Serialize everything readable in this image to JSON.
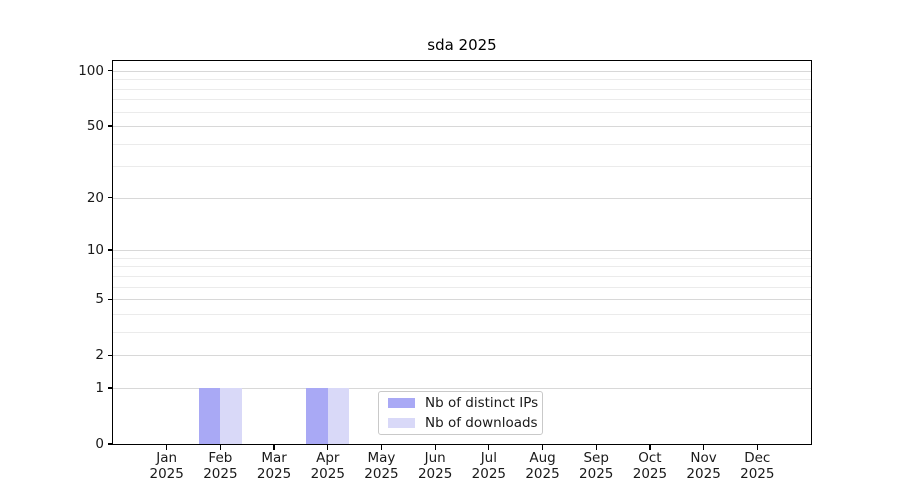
{
  "figure": {
    "background": "#ffffff"
  },
  "chart_data": {
    "type": "bar",
    "title": "sda 2025",
    "categories": [
      "Jan 2025",
      "Feb 2025",
      "Mar 2025",
      "Apr 2025",
      "May 2025",
      "Jun 2025",
      "Jul 2025",
      "Aug 2025",
      "Sep 2025",
      "Oct 2025",
      "Nov 2025",
      "Dec 2025"
    ],
    "series": [
      {
        "name": "Nb of distinct IPs",
        "color": "#a9a9f5",
        "values": [
          0,
          1,
          0,
          1,
          0,
          0,
          0,
          0,
          0,
          0,
          0,
          0
        ]
      },
      {
        "name": "Nb of downloads",
        "color": "#d9d9f8",
        "values": [
          0,
          1,
          0,
          1,
          0,
          0,
          0,
          0,
          0,
          0,
          0,
          0
        ]
      }
    ],
    "xlabel": "",
    "ylabel": "",
    "yscale": "log1p",
    "ylim": [
      0,
      113
    ],
    "yticks_major": [
      0,
      1,
      2,
      5,
      10,
      20,
      50,
      100
    ],
    "yticks_minor": [
      3,
      4,
      6,
      7,
      8,
      9,
      30,
      40,
      60,
      70,
      80,
      90
    ],
    "grid": true,
    "legend_position": "lower center",
    "colors": {
      "major_grid": "#d8d8d8",
      "minor_grid": "#ebebeb",
      "spine": "#000000",
      "text": "#1a1a1a"
    }
  }
}
